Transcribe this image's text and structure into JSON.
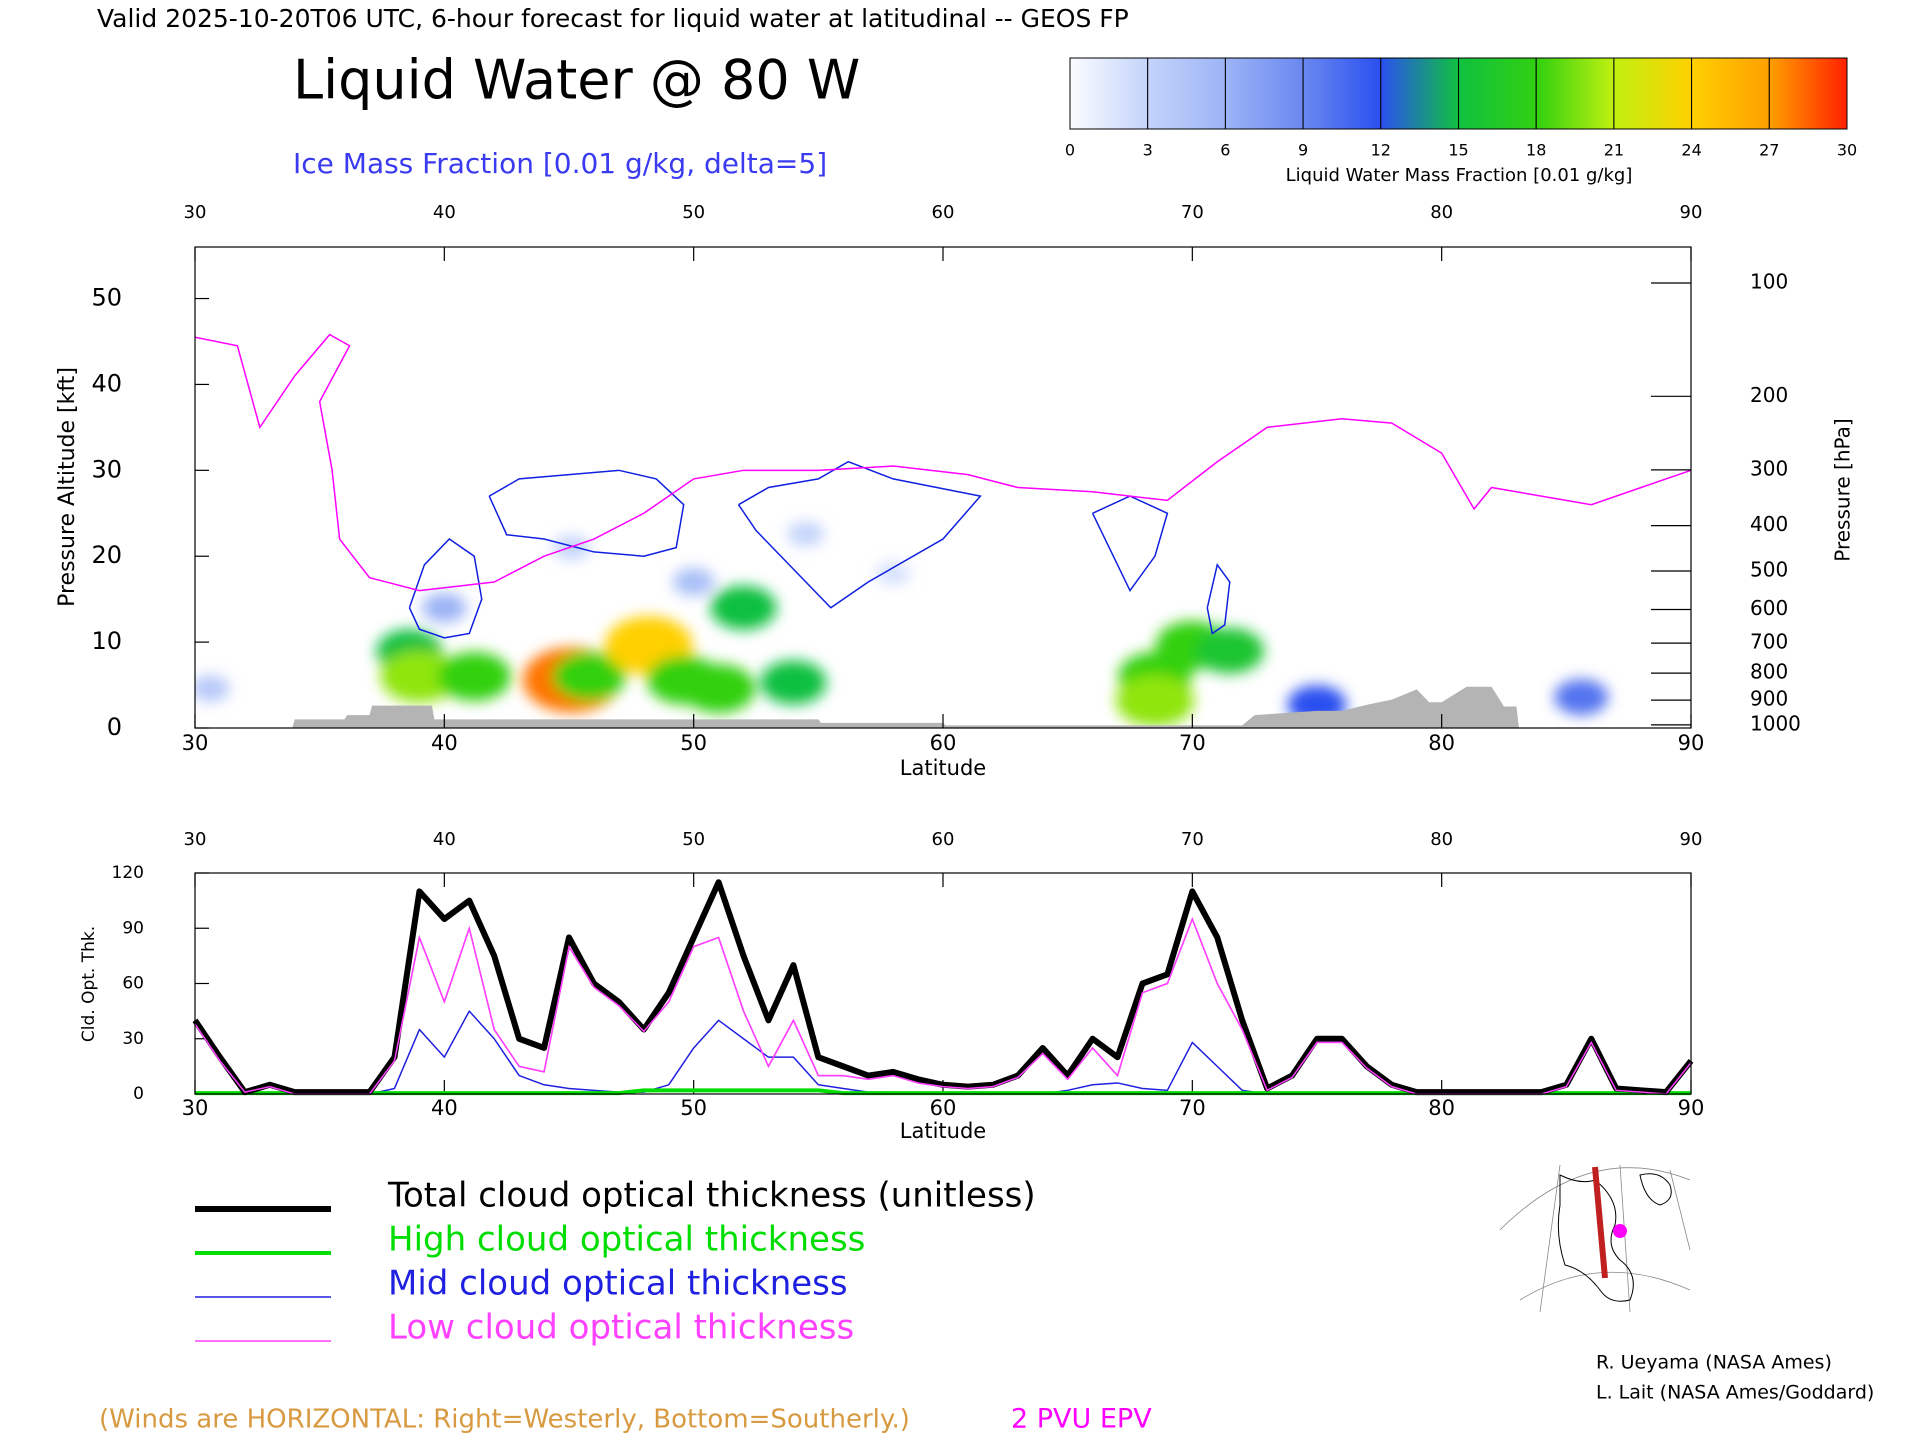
{
  "header": {
    "title": "Valid 2025-10-20T06 UTC, 6-hour forecast for liquid water at latitudinal -- GEOS FP"
  },
  "chart_data": [
    {
      "type": "cross_section",
      "title": "Liquid Water @ 80 W",
      "subtitle": "Ice Mass Fraction [0.01 g/kg, delta=5]",
      "xlabel": "Latitude",
      "ylabel": "Pressure Altitude [kft]",
      "y2label": "Pressure [hPa]",
      "xlim": [
        30,
        90
      ],
      "xticks": [
        30,
        40,
        50,
        60,
        70,
        80,
        90
      ],
      "ylim": [
        0,
        56
      ],
      "yticks": [
        0,
        10,
        20,
        30,
        40,
        50
      ],
      "y2ticks": [
        100,
        200,
        300,
        400,
        500,
        600,
        700,
        800,
        900,
        1000
      ],
      "colorbar": {
        "label": "Liquid Water Mass Fraction [0.01 g/kg]",
        "ticks": [
          0,
          3,
          6,
          9,
          12,
          15,
          18,
          21,
          24,
          27,
          30
        ],
        "colors": [
          "#fafcff",
          "#c4d4fa",
          "#9cb4f6",
          "#6a88f0",
          "#2a50f0",
          "#10c040",
          "#30d010",
          "#c0f010",
          "#ffd000",
          "#ffa000",
          "#ff2000"
        ]
      },
      "liquid_water": {
        "x": [
          38.6,
          39,
          41.2,
          45.1,
          45.8,
          48.2,
          49.6,
          51,
          52,
          54,
          68.5,
          70,
          71.5,
          68.5,
          75,
          85.6,
          45.1,
          54.5,
          58,
          40,
          50,
          30.6
        ],
        "y": [
          8.9,
          6,
          6,
          5.6,
          6,
          9.6,
          5.6,
          4.6,
          14,
          5.3,
          6,
          9.6,
          9,
          3.2,
          2.7,
          3.6,
          21,
          22.6,
          18,
          14,
          17,
          4.6
        ],
        "values": [
          15,
          20,
          18,
          28,
          18,
          24,
          18,
          18,
          15,
          15,
          18,
          18,
          16,
          20,
          12,
          10,
          3,
          3,
          2,
          6,
          5,
          4
        ]
      },
      "epv": {
        "name": "2 PVU EPV",
        "color": "#ff00ff",
        "x": [
          30,
          31.7,
          32.6,
          34,
          35.4,
          36.2,
          35,
          35.5,
          35.8,
          37,
          39,
          42,
          44,
          46,
          48,
          50,
          52,
          55,
          58,
          61,
          63,
          66,
          69,
          71,
          73,
          76,
          78,
          80,
          81.3,
          82,
          84,
          86,
          88,
          90
        ],
        "values": [
          45.5,
          44.5,
          35,
          41,
          45.8,
          44.5,
          38,
          30,
          22,
          17.5,
          16,
          17,
          20,
          22,
          25,
          29,
          30,
          30,
          30.5,
          29.5,
          28,
          27.5,
          26.5,
          31,
          35,
          36,
          35.5,
          32,
          25.5,
          28,
          27,
          26,
          28,
          30
        ]
      },
      "ice_contours": {
        "color": "#1020e0",
        "series": [
          {
            "x": [
              38.6,
              39.2,
              40.2,
              41.2,
              41.5,
              41,
              40,
              39,
              38.6
            ],
            "values": [
              14,
              19,
              22,
              20,
              15,
              11,
              10.5,
              11.5,
              14
            ]
          },
          {
            "x": [
              41.8,
              43,
              45,
              47,
              48.5,
              49.6,
              49.3,
              48,
              46,
              44,
              42.5,
              41.8
            ],
            "values": [
              27,
              29,
              29.5,
              30,
              29,
              26,
              21,
              20,
              20.5,
              22,
              22.5,
              27
            ]
          },
          {
            "x": [
              51.8,
              53,
              55,
              56.2,
              58,
              61.5,
              60,
              57,
              55.5,
              54.5,
              52.5,
              51.8
            ],
            "values": [
              26,
              28,
              29,
              31,
              29,
              27,
              22,
              17,
              14,
              17,
              23,
              26
            ]
          },
          {
            "x": [
              66,
              67.5,
              69,
              68.5,
              67.5,
              66.5,
              66
            ],
            "values": [
              25,
              27,
              25,
              20,
              16,
              22,
              25
            ]
          },
          {
            "x": [
              70.6,
              71,
              71.5,
              71.3,
              70.8,
              70.6
            ],
            "values": [
              14,
              19,
              17,
              12,
              11,
              14
            ]
          }
        ]
      },
      "terrain": {
        "color": "#b4b4b4",
        "x": [
          30,
          33.9,
          34,
          36,
          36.1,
          37,
          37.1,
          39.5,
          39.6,
          55,
          55.1,
          60,
          60.1,
          72,
          72.5,
          75,
          76,
          77,
          78,
          79,
          79.5,
          80,
          81,
          82,
          82.5,
          83,
          83.1,
          90
        ],
        "values": [
          0,
          0,
          1,
          1,
          1.5,
          1.5,
          2.6,
          2.6,
          1,
          1,
          0.6,
          0.6,
          0.3,
          0.3,
          1.5,
          2,
          2,
          2.7,
          3.3,
          4.5,
          3,
          3,
          4.8,
          4.8,
          2.5,
          2.5,
          0,
          0
        ]
      }
    },
    {
      "type": "line",
      "xlabel": "Latitude",
      "ylabel": "Cld. Opt. Thk.",
      "xlim": [
        30,
        90
      ],
      "xticks": [
        30,
        40,
        50,
        60,
        70,
        80,
        90
      ],
      "ylim": [
        0,
        120
      ],
      "yticks": [
        0,
        30,
        60,
        90,
        120
      ],
      "x": [
        30,
        31,
        32,
        33,
        34,
        35,
        36,
        37,
        38,
        39,
        40,
        41,
        42,
        43,
        44,
        45,
        46,
        47,
        48,
        49,
        50,
        51,
        52,
        53,
        54,
        55,
        56,
        57,
        58,
        59,
        60,
        61,
        62,
        63,
        64,
        65,
        66,
        67,
        68,
        69,
        70,
        71,
        72,
        73,
        74,
        75,
        76,
        77,
        78,
        79,
        80,
        81,
        82,
        83,
        84,
        85,
        86,
        87,
        88,
        89,
        90
      ],
      "series": [
        {
          "name": "Total cloud optical thickness (unitless)",
          "color": "#000000",
          "width": 6,
          "values": [
            40,
            20,
            1,
            5,
            1,
            1,
            1,
            1,
            20,
            110,
            95,
            105,
            75,
            30,
            25,
            85,
            60,
            50,
            35,
            55,
            85,
            115,
            75,
            40,
            70,
            20,
            15,
            10,
            12,
            8,
            5,
            4,
            5,
            10,
            25,
            10,
            30,
            20,
            60,
            65,
            110,
            85,
            40,
            3,
            10,
            30,
            30,
            15,
            5,
            1,
            1,
            1,
            1,
            1,
            1,
            5,
            30,
            3,
            2,
            1,
            18
          ]
        },
        {
          "name": "High cloud optical thickness",
          "color": "#00dd00",
          "width": 4,
          "values": [
            0.5,
            0.5,
            0.5,
            0.5,
            0.5,
            0.5,
            0.5,
            0.5,
            0.5,
            0.5,
            0.5,
            0.5,
            0.5,
            0.5,
            0.5,
            0.5,
            0.5,
            0.5,
            2,
            2,
            2,
            2,
            2,
            2,
            2,
            2,
            0.5,
            0.5,
            0.5,
            0.5,
            0.5,
            0.5,
            0.5,
            0.5,
            0.5,
            0.5,
            0.5,
            0.5,
            0.5,
            0.5,
            0.5,
            0.5,
            0.5,
            0.5,
            0.5,
            0.5,
            0.5,
            0.5,
            0.5,
            0.5,
            0.5,
            0.5,
            0.5,
            0.5,
            0.5,
            0.5,
            0.5,
            0.5,
            0.5,
            0.5,
            0.5
          ]
        },
        {
          "name": "Mid cloud optical thickness",
          "color": "#2020e0",
          "width": 1.5,
          "values": [
            0,
            0,
            0,
            0,
            0,
            0,
            0,
            0,
            3,
            35,
            20,
            45,
            30,
            10,
            5,
            3,
            2,
            1,
            1,
            5,
            25,
            40,
            30,
            20,
            20,
            5,
            3,
            1,
            1,
            0,
            0,
            0,
            0,
            0,
            0,
            2,
            5,
            6,
            3,
            2,
            28,
            15,
            2,
            0,
            0,
            0,
            0,
            0,
            0,
            0,
            0,
            0,
            0,
            0,
            0,
            0,
            0,
            0,
            0,
            0,
            0
          ]
        },
        {
          "name": "Low cloud optical thickness",
          "color": "#ff40ff",
          "width": 1.5,
          "values": [
            38,
            18,
            1,
            4,
            0,
            0,
            0,
            0,
            18,
            85,
            50,
            90,
            35,
            15,
            12,
            80,
            58,
            48,
            34,
            50,
            80,
            85,
            45,
            15,
            40,
            10,
            10,
            8,
            10,
            6,
            4,
            3,
            4,
            9,
            22,
            8,
            25,
            10,
            55,
            60,
            95,
            60,
            35,
            2,
            9,
            28,
            28,
            14,
            4,
            0,
            0,
            0,
            0,
            0,
            0,
            4,
            28,
            2,
            1,
            0,
            17
          ]
        }
      ]
    }
  ],
  "notes": {
    "winds": "(Winds are HORIZONTAL: Right=Westerly, Bottom=Southerly.)",
    "credit1": "R. Ueyama (NASA Ames)",
    "credit2": "L. Lait (NASA Ames/Goddard)"
  }
}
